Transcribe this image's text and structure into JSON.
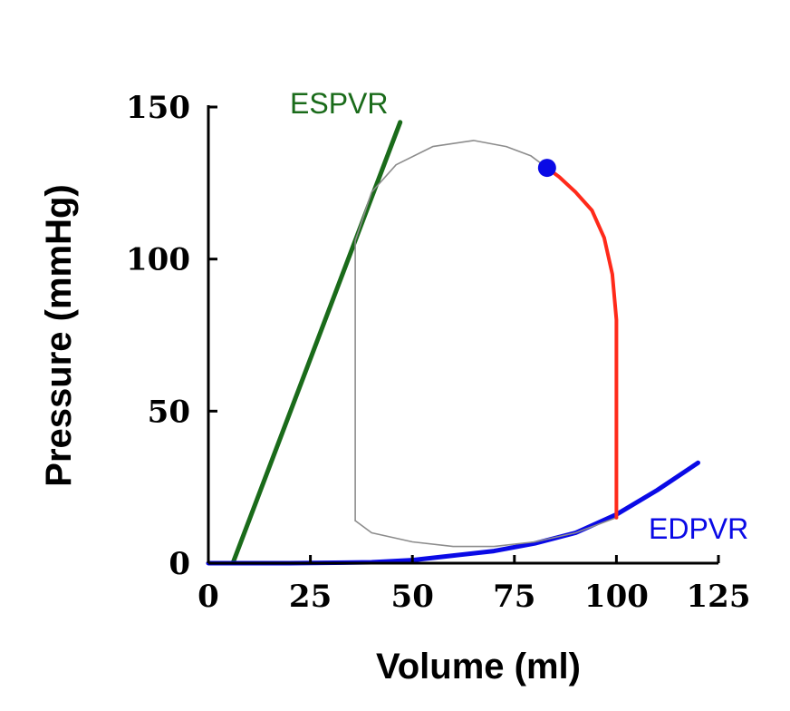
{
  "chart_data": {
    "type": "line",
    "title": "",
    "xlabel": "Volume (ml)",
    "ylabel": "Pressure (mmHg)",
    "xlim": [
      0,
      125
    ],
    "ylim": [
      0,
      150
    ],
    "x_ticks": [
      0,
      25,
      50,
      75,
      100,
      125
    ],
    "y_ticks": [
      0,
      50,
      100,
      150
    ],
    "x_tick_labels": [
      "0",
      "25",
      "50",
      "75",
      "100",
      "125"
    ],
    "y_tick_labels": [
      "0",
      "50",
      "100",
      "150"
    ],
    "grid": false,
    "colors": {
      "espvr": "#1a6b1a",
      "edpvr": "#0a0ae6",
      "ejection": "#ff2a1a",
      "loop": "#8c8c8c",
      "point": "#0a0ae6",
      "axis": "#000000"
    },
    "series": [
      {
        "name": "ESPVR",
        "label": "ESPVR",
        "points": [
          [
            6,
            0
          ],
          [
            47,
            145
          ]
        ]
      },
      {
        "name": "EDPVR",
        "label": "EDPVR",
        "points": [
          [
            0,
            0
          ],
          [
            20,
            0
          ],
          [
            40,
            0.3
          ],
          [
            50,
            1
          ],
          [
            60,
            2.5
          ],
          [
            70,
            4
          ],
          [
            80,
            6.5
          ],
          [
            90,
            10
          ],
          [
            100,
            16
          ],
          [
            110,
            24
          ],
          [
            120,
            33
          ]
        ]
      },
      {
        "name": "Pressure-volume loop",
        "label": "",
        "points": [
          [
            36,
            14
          ],
          [
            36,
            106
          ],
          [
            40,
            122
          ],
          [
            46,
            131
          ],
          [
            55,
            137
          ],
          [
            65,
            139
          ],
          [
            73,
            137
          ],
          [
            79,
            134
          ],
          [
            83,
            130
          ]
        ]
      },
      {
        "name": "Pressure-volume loop (filling)",
        "label": "",
        "points": [
          [
            36,
            14
          ],
          [
            40,
            10
          ],
          [
            50,
            7
          ],
          [
            60,
            5.5
          ],
          [
            70,
            5.5
          ],
          [
            80,
            7
          ],
          [
            90,
            10
          ],
          [
            100,
            15
          ]
        ]
      },
      {
        "name": "Ejection (isovolumic contraction)",
        "label": "",
        "points": [
          [
            100,
            15
          ],
          [
            100,
            50
          ],
          [
            100,
            80
          ],
          [
            99,
            95
          ],
          [
            97,
            107
          ],
          [
            94,
            116
          ],
          [
            90,
            122
          ],
          [
            86,
            127
          ],
          [
            83,
            130
          ]
        ]
      }
    ],
    "marker": {
      "name": "current state point",
      "x": 83,
      "y": 130
    }
  }
}
